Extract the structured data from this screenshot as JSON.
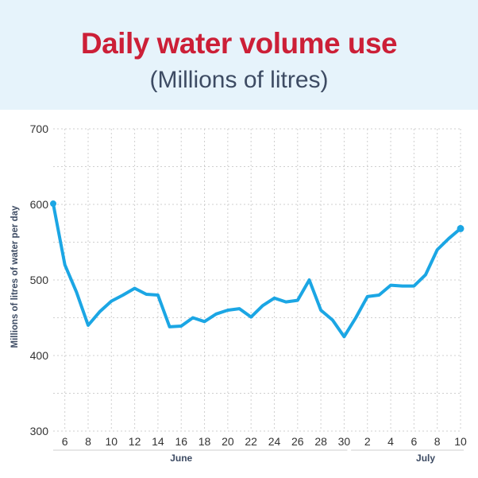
{
  "chart_data": {
    "type": "line",
    "title": "Daily water volume use",
    "subtitle": "(Millions of litres)",
    "ylabel": "Millions of litres of water per day",
    "ylim": [
      300,
      700
    ],
    "yticks": [
      300,
      400,
      500,
      600,
      700
    ],
    "x_tick_labels": [
      "6",
      "8",
      "10",
      "12",
      "14",
      "16",
      "18",
      "20",
      "22",
      "24",
      "26",
      "28",
      "30",
      "2",
      "4",
      "6",
      "8",
      "10"
    ],
    "month_labels": [
      "June",
      "July"
    ],
    "grid": true,
    "colors": {
      "line": "#1ba6e4",
      "grid": "#cfcfcf",
      "title": "#cc1f37",
      "header_bg": "#e6f3fb"
    },
    "series": [
      {
        "x": [
          "Jun 5",
          "Jun 6",
          "Jun 7",
          "Jun 8",
          "Jun 9",
          "Jun 10",
          "Jun 11",
          "Jun 12",
          "Jun 13",
          "Jun 14",
          "Jun 15",
          "Jun 16",
          "Jun 17",
          "Jun 18",
          "Jun 19",
          "Jun 20",
          "Jun 21",
          "Jun 22",
          "Jun 23",
          "Jun 24",
          "Jun 25",
          "Jun 26",
          "Jun 27",
          "Jun 28",
          "Jun 29",
          "Jun 30",
          "Jul 1",
          "Jul 2",
          "Jul 3",
          "Jul 4",
          "Jul 5",
          "Jul 6",
          "Jul 7",
          "Jul 8",
          "Jul 9",
          "Jul 10"
        ],
        "values": [
          601,
          520,
          484,
          440,
          458,
          472,
          480,
          489,
          481,
          480,
          438,
          439,
          450,
          445,
          455,
          460,
          462,
          451,
          466,
          476,
          471,
          473,
          500,
          460,
          447,
          425,
          450,
          478,
          480,
          493,
          492,
          492,
          507,
          540,
          555,
          568
        ]
      }
    ]
  }
}
